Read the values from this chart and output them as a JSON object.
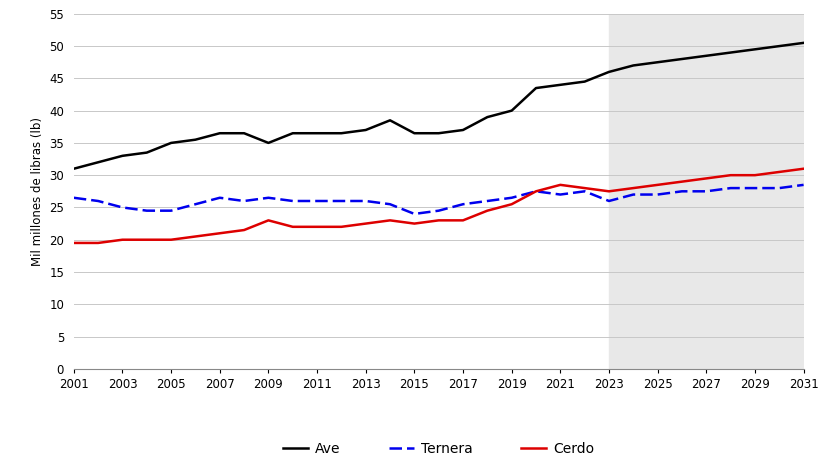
{
  "years": [
    2001,
    2002,
    2003,
    2004,
    2005,
    2006,
    2007,
    2008,
    2009,
    2010,
    2011,
    2012,
    2013,
    2014,
    2015,
    2016,
    2017,
    2018,
    2019,
    2020,
    2021,
    2022,
    2023,
    2024,
    2025,
    2026,
    2027,
    2028,
    2029,
    2030,
    2031
  ],
  "ave": [
    31.0,
    32.0,
    33.0,
    33.5,
    35.0,
    35.5,
    36.5,
    36.5,
    35.0,
    36.5,
    36.5,
    36.5,
    37.0,
    38.5,
    36.5,
    36.5,
    37.0,
    39.0,
    40.0,
    43.5,
    44.0,
    44.5,
    46.0,
    47.0,
    47.5,
    48.0,
    48.5,
    49.0,
    49.5,
    50.0,
    50.5
  ],
  "ternera": [
    26.5,
    26.0,
    25.0,
    24.5,
    24.5,
    25.5,
    26.5,
    26.0,
    26.5,
    26.0,
    26.0,
    26.0,
    26.0,
    25.5,
    24.0,
    24.5,
    25.5,
    26.0,
    26.5,
    27.5,
    27.0,
    27.5,
    26.0,
    27.0,
    27.0,
    27.5,
    27.5,
    28.0,
    28.0,
    28.0,
    28.5
  ],
  "cerdo": [
    19.5,
    19.5,
    20.0,
    20.0,
    20.0,
    20.5,
    21.0,
    21.5,
    23.0,
    22.0,
    22.0,
    22.0,
    22.5,
    23.0,
    22.5,
    23.0,
    23.0,
    24.5,
    25.5,
    27.5,
    28.5,
    28.0,
    27.5,
    28.0,
    28.5,
    29.0,
    29.5,
    30.0,
    30.0,
    30.5,
    31.0
  ],
  "shade_start": 2023,
  "xlim": [
    2001,
    2031
  ],
  "ylim": [
    0,
    55
  ],
  "yticks": [
    0,
    5,
    10,
    15,
    20,
    25,
    30,
    35,
    40,
    45,
    50,
    55
  ],
  "xticks": [
    2001,
    2003,
    2005,
    2007,
    2009,
    2011,
    2013,
    2015,
    2017,
    2019,
    2021,
    2023,
    2025,
    2027,
    2029,
    2031
  ],
  "ylabel": "Mil millones de libras (lb)",
  "ave_color": "#000000",
  "ternera_color": "#0000ee",
  "cerdo_color": "#dd0000",
  "shade_color": "#e8e8e8",
  "background_color": "#ffffff",
  "grid_color": "#c8c8c8",
  "legend_labels": [
    "Ave",
    "Ternera",
    "Cerdo"
  ]
}
